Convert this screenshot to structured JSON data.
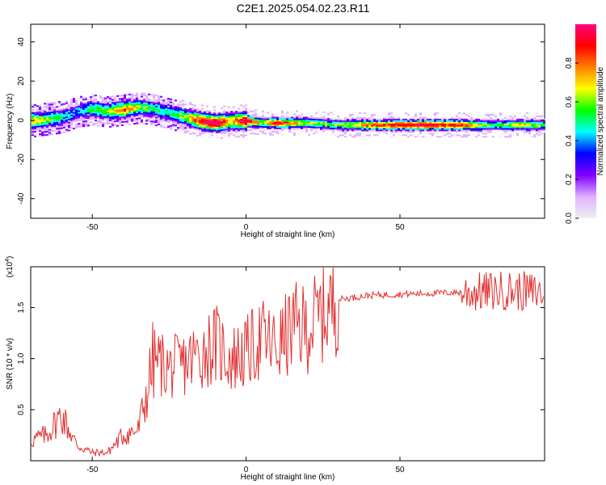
{
  "title": "C2E1.2025.054.02.23.R11",
  "chart_data": [
    {
      "type": "heatmap",
      "xlabel": "Height of straight line (km)",
      "ylabel": "Frequency (Hz)",
      "xlim": [
        -70,
        97
      ],
      "ylim": [
        -50,
        49
      ],
      "x_ticks": [
        "-50",
        "0",
        "50"
      ],
      "x_tick_values": [
        -50,
        0,
        50
      ],
      "y_ticks": [
        "40",
        "20",
        "0",
        "-20",
        "-40"
      ],
      "y_tick_values": [
        40,
        20,
        0,
        -20,
        -40
      ],
      "colorbar": {
        "label": "Normalized spectral amplitude",
        "range": [
          0.0,
          1.0
        ],
        "ticks": [
          "0.0",
          "0.2",
          "0.4",
          "0.6",
          "0.8"
        ],
        "tick_values": [
          0.0,
          0.2,
          0.4,
          0.6,
          0.8
        ],
        "colors": [
          "#f0f0f0",
          "#e0b0ff",
          "#8000ff",
          "#0000ff",
          "#00ffff",
          "#00ff00",
          "#ffff00",
          "#ff8000",
          "#ff0000",
          "#ff0080"
        ]
      },
      "ridge": {
        "x": [
          -70,
          -60,
          -55,
          -50,
          -45,
          -40,
          -35,
          -30,
          -25,
          -20,
          -15,
          -10,
          -5,
          0,
          5,
          10,
          20,
          30,
          40,
          50,
          60,
          70,
          80,
          90,
          97
        ],
        "center_freq": [
          0,
          2,
          5,
          6,
          5,
          6,
          7,
          6,
          4,
          2,
          0,
          -1,
          0,
          0,
          -1,
          -1,
          -1,
          -2,
          -2,
          -2,
          -2,
          -2,
          -2,
          -2,
          -2
        ],
        "amplitude": [
          0.7,
          0.5,
          0.4,
          0.55,
          0.6,
          0.8,
          0.6,
          0.5,
          0.5,
          0.6,
          0.9,
          0.95,
          0.7,
          0.98,
          0.6,
          0.9,
          0.6,
          0.55,
          0.8,
          0.9,
          0.9,
          0.85,
          0.5,
          0.7,
          0.5
        ]
      }
    },
    {
      "type": "line",
      "xlabel": "Height of straight line (km)",
      "ylabel": "SNR (10 * v/v)",
      "multiplier_label": "(x10",
      "multiplier_exp": "4",
      "xlim": [
        -70,
        97
      ],
      "ylim": [
        0,
        19000
      ],
      "x_ticks": [
        "-50",
        "0",
        "50"
      ],
      "x_tick_values": [
        -50,
        0,
        50
      ],
      "y_ticks": [
        "0.5",
        "1.0",
        "1.5"
      ],
      "y_tick_values": [
        5000,
        10000,
        15000
      ],
      "line_color": "#e03030",
      "envelope": {
        "x": [
          -70,
          -65,
          -60,
          -55,
          -50,
          -45,
          -40,
          -35,
          -32,
          -30,
          -25,
          -20,
          -15,
          -10,
          -5,
          0,
          5,
          10,
          15,
          20,
          25,
          30,
          40,
          50,
          60,
          70,
          75,
          80,
          85,
          90,
          97
        ],
        "y": [
          2000,
          2500,
          4500,
          1500,
          800,
          800,
          2500,
          3000,
          7000,
          10000,
          9000,
          9500,
          10500,
          11500,
          10000,
          10500,
          12000,
          11000,
          13000,
          13000,
          14500,
          15800,
          16200,
          16300,
          16400,
          16500,
          16500,
          16600,
          16700,
          16600,
          16400
        ]
      }
    }
  ]
}
